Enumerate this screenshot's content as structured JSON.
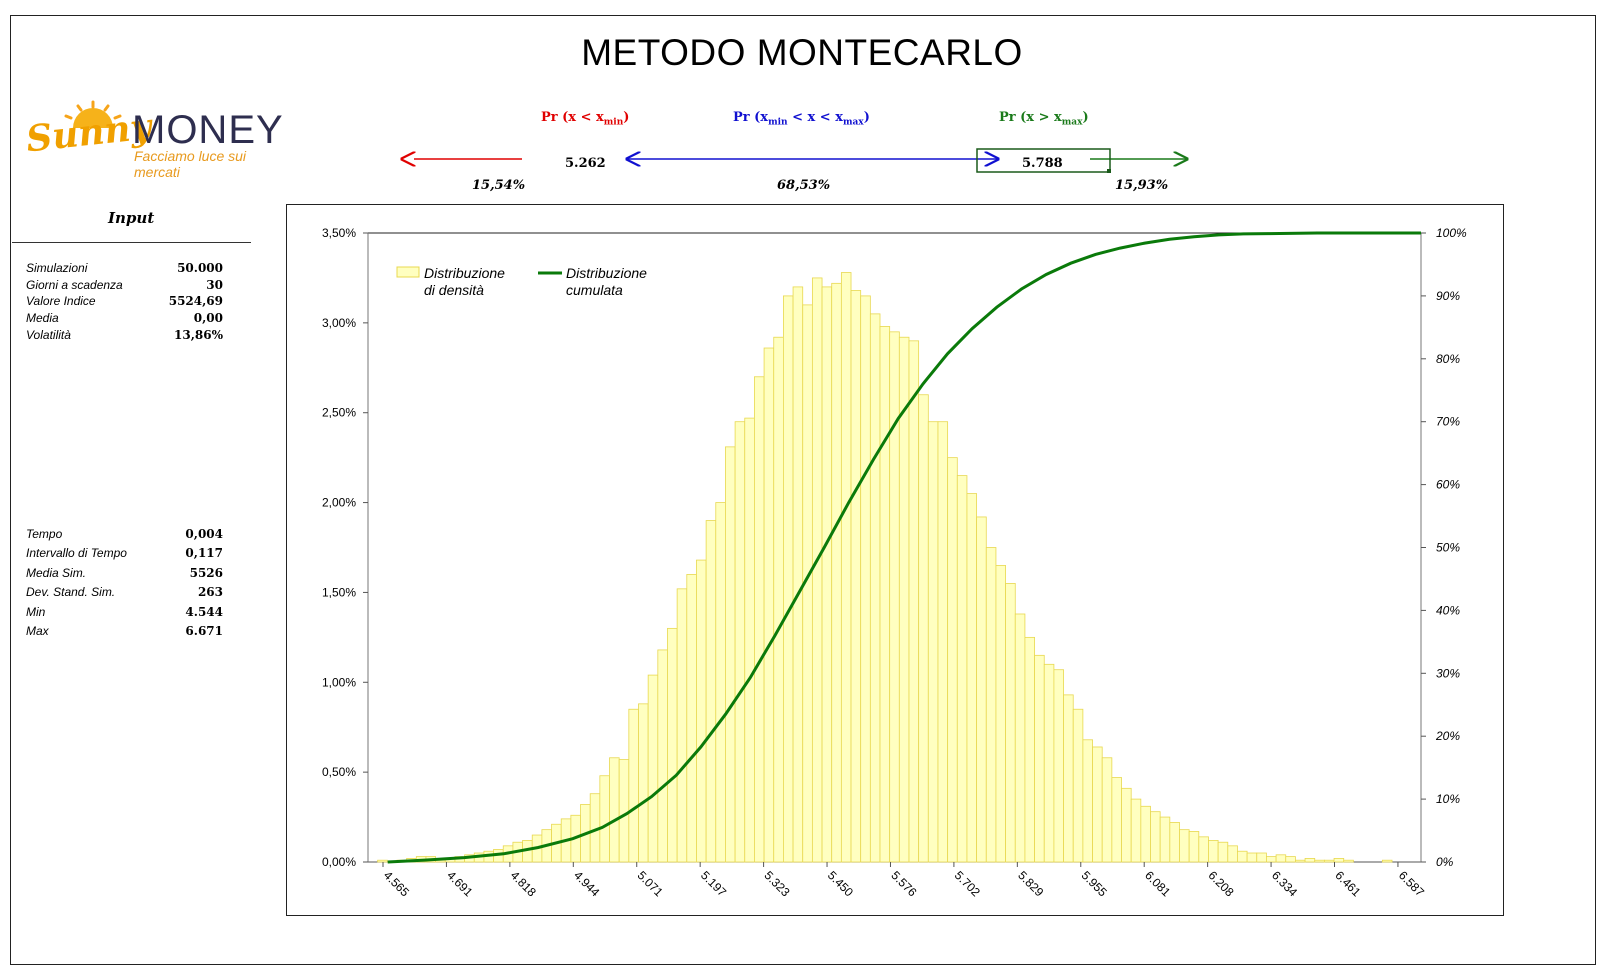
{
  "title": "METODO MONTECARLO",
  "logo": {
    "script": "Sunny",
    "word": "MONEY",
    "tagline": "Facciamo luce sui mercati"
  },
  "probabilities": {
    "left_label": "Pr (x < x",
    "left_sub": "min",
    "left_close": ")",
    "mid_label_a": "Pr (x",
    "mid_sub_a": "min",
    "mid_label_b": " < x < x",
    "mid_sub_b": "max",
    "mid_close": ")",
    "right_label": "Pr (x > x",
    "right_sub": "max",
    "right_close": ")",
    "xmin": "5.262",
    "xmax": "5.788",
    "p_left": "15,54%",
    "p_mid": "68,53%",
    "p_right": "15,93%",
    "colors": {
      "left": "#e00000",
      "mid": "#1010d0",
      "right": "#1a7a1a"
    }
  },
  "input": {
    "heading": "Input",
    "params_top": [
      {
        "label": "Simulazioni",
        "value": "50.000"
      },
      {
        "label": "Giorni a scadenza",
        "value": "30"
      },
      {
        "label": "Valore Indice",
        "value": "5524,69"
      },
      {
        "label": "Media",
        "value": "0,00"
      },
      {
        "label": "Volatilità",
        "value": "13,86%"
      }
    ],
    "params_bottom": [
      {
        "label": "Tempo",
        "value": "0,004"
      },
      {
        "label": "Intervallo di Tempo",
        "value": "0,117"
      },
      {
        "label": "Media Sim.",
        "value": "5526"
      },
      {
        "label": "Dev. Stand. Sim.",
        "value": "263"
      },
      {
        "label": "Min",
        "value": "4.544"
      },
      {
        "label": "Max",
        "value": "6.671"
      }
    ]
  },
  "chart_data": {
    "type": "bar",
    "bar_color": "#ffffc0",
    "bar_edge": "#e8d850",
    "line_color": "#0a7a0a",
    "x_ticks": [
      "4.565",
      "4.691",
      "4.818",
      "4.944",
      "5.071",
      "5.197",
      "5.323",
      "5.450",
      "5.576",
      "5.702",
      "5.829",
      "5.955",
      "6.081",
      "6.208",
      "6.334",
      "6.461",
      "6.587"
    ],
    "y_left_ticks": [
      "0,00%",
      "0,50%",
      "1,00%",
      "1,50%",
      "2,00%",
      "2,50%",
      "3,00%",
      "3,50%"
    ],
    "y_left_range": [
      0,
      3.5
    ],
    "y_right_ticks": [
      "0%",
      "10%",
      "20%",
      "30%",
      "40%",
      "50%",
      "60%",
      "70%",
      "80%",
      "90%",
      "100%"
    ],
    "y_right_range": [
      0,
      100
    ],
    "legend": [
      {
        "name": "Distribuzione",
        "name2": "di densità"
      },
      {
        "name": "Distribuzione",
        "name2": "cumulata"
      }
    ],
    "density_pct": [
      0,
      0.01,
      0,
      0.01,
      0.02,
      0.03,
      0.03,
      0.01,
      0.02,
      0.03,
      0.04,
      0.05,
      0.06,
      0.07,
      0.09,
      0.11,
      0.12,
      0.15,
      0.18,
      0.21,
      0.24,
      0.26,
      0.32,
      0.38,
      0.48,
      0.58,
      0.57,
      0.85,
      0.88,
      1.04,
      1.18,
      1.3,
      1.52,
      1.6,
      1.68,
      1.9,
      2.0,
      2.31,
      2.45,
      2.47,
      2.7,
      2.86,
      2.92,
      3.15,
      3.2,
      3.1,
      3.25,
      3.2,
      3.22,
      3.28,
      3.18,
      3.15,
      3.05,
      2.98,
      2.95,
      2.92,
      2.9,
      2.6,
      2.45,
      2.45,
      2.25,
      2.15,
      2.05,
      1.92,
      1.75,
      1.65,
      1.55,
      1.38,
      1.25,
      1.15,
      1.1,
      1.07,
      0.93,
      0.85,
      0.68,
      0.64,
      0.58,
      0.47,
      0.41,
      0.35,
      0.31,
      0.28,
      0.25,
      0.22,
      0.18,
      0.17,
      0.14,
      0.12,
      0.11,
      0.09,
      0.06,
      0.05,
      0.05,
      0.03,
      0.04,
      0.03,
      0.01,
      0.02,
      0.01,
      0.01,
      0.02,
      0.01,
      0,
      0,
      0,
      0.01,
      0,
      0,
      0
    ],
    "cumulative": {
      "x": [
        4.565,
        4.64,
        4.72,
        4.8,
        4.87,
        4.94,
        5.0,
        5.05,
        5.1,
        5.15,
        5.2,
        5.25,
        5.3,
        5.35,
        5.4,
        5.45,
        5.5,
        5.55,
        5.6,
        5.65,
        5.7,
        5.75,
        5.8,
        5.85,
        5.9,
        5.95,
        6.0,
        6.05,
        6.1,
        6.15,
        6.2,
        6.25,
        6.3,
        6.35,
        6.45,
        6.6,
        6.66
      ],
      "y": [
        0,
        0.3,
        0.7,
        1.3,
        2.3,
        3.7,
        5.5,
        7.7,
        10.4,
        13.8,
        18.3,
        23.5,
        29.3,
        36.0,
        43.0,
        50.0,
        57.2,
        64.0,
        70.5,
        76.0,
        80.8,
        84.8,
        88.2,
        91.1,
        93.4,
        95.2,
        96.6,
        97.6,
        98.4,
        99.0,
        99.4,
        99.7,
        99.85,
        99.9,
        100,
        100,
        100
      ]
    }
  }
}
